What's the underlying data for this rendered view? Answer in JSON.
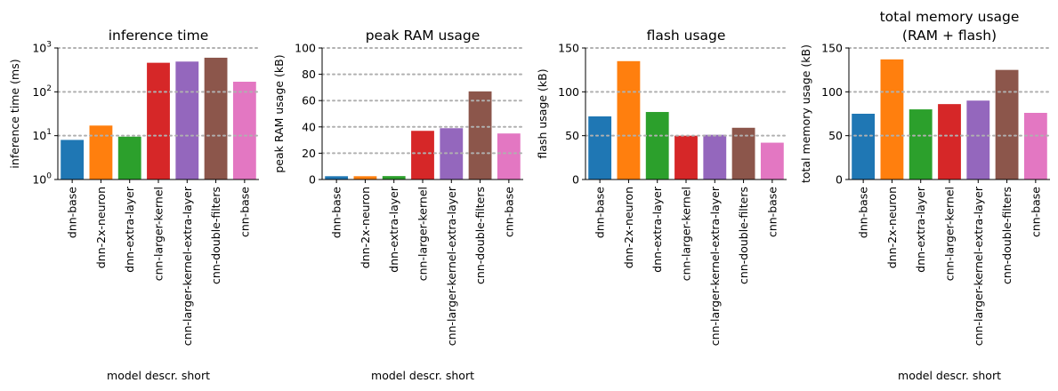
{
  "colors": [
    "#1f77b4",
    "#ff7f0e",
    "#2ca02c",
    "#d62728",
    "#9467bd",
    "#8c564b",
    "#e377c2"
  ],
  "chart_data": [
    {
      "type": "bar",
      "title": "inference time",
      "xlabel": "model descr. short",
      "ylabel": "inference time (ms)",
      "yscale": "log",
      "ylim": [
        1,
        1000
      ],
      "yticks": [
        1,
        10,
        100,
        1000
      ],
      "ytick_labels": [
        [
          "10",
          "0"
        ],
        [
          "10",
          "1"
        ],
        [
          "10",
          "2"
        ],
        [
          "10",
          "3"
        ]
      ],
      "grid_y": [
        10,
        100,
        1000
      ],
      "categories": [
        "dnn-base",
        "dnn-2x-neuron",
        "dnn-extra-layer",
        "cnn-larger-kernel",
        "cnn-larger-kernel-extra-layer",
        "cnn-double-filters",
        "cnn-base"
      ],
      "values": [
        8,
        17,
        9.5,
        460,
        490,
        600,
        170
      ]
    },
    {
      "type": "bar",
      "title": "peak RAM usage",
      "xlabel": "model descr. short",
      "ylabel": "peak RAM usage (kB)",
      "yscale": "linear",
      "ylim": [
        0,
        100
      ],
      "yticks": [
        0,
        20,
        40,
        60,
        80,
        100
      ],
      "ytick_labels": [
        "0",
        "20",
        "40",
        "60",
        "80",
        "100"
      ],
      "grid_y": [
        20,
        40,
        60,
        80,
        100
      ],
      "categories": [
        "dnn-base",
        "dnn-2x-neuron",
        "dnn-extra-layer",
        "cnn-larger-kernel",
        "cnn-larger-kernel-extra-layer",
        "cnn-double-filters",
        "cnn-base"
      ],
      "values": [
        2.5,
        2.5,
        2.6,
        37,
        39,
        67,
        35
      ]
    },
    {
      "type": "bar",
      "title": "flash usage",
      "xlabel": "",
      "ylabel": "flash usage (kB)",
      "yscale": "linear",
      "ylim": [
        0,
        150
      ],
      "yticks": [
        0,
        50,
        100,
        150
      ],
      "ytick_labels": [
        "0",
        "50",
        "100",
        "150"
      ],
      "grid_y": [
        50,
        100,
        150
      ],
      "categories": [
        "dnn-base",
        "dnn-2x-neuron",
        "dnn-extra-layer",
        "cnn-larger-kernel",
        "cnn-larger-kernel-extra-layer",
        "cnn-double-filters",
        "cnn-base"
      ],
      "values": [
        72,
        135,
        77,
        50,
        51,
        59,
        42
      ]
    },
    {
      "type": "bar",
      "title": [
        "total memory usage",
        "(RAM + flash)"
      ],
      "xlabel": "model descr. short",
      "ylabel": "total memory usage (kB)",
      "yscale": "linear",
      "ylim": [
        0,
        150
      ],
      "yticks": [
        0,
        50,
        100,
        150
      ],
      "ytick_labels": [
        "0",
        "50",
        "100",
        "150"
      ],
      "grid_y": [
        50,
        100,
        150
      ],
      "categories": [
        "dnn-base",
        "dnn-2x-neuron",
        "dnn-extra-layer",
        "cnn-larger-kernel",
        "cnn-larger-kernel-extra-layer",
        "cnn-double-filters",
        "cnn-base"
      ],
      "values": [
        75,
        137,
        80,
        86,
        90,
        125,
        76
      ]
    }
  ]
}
